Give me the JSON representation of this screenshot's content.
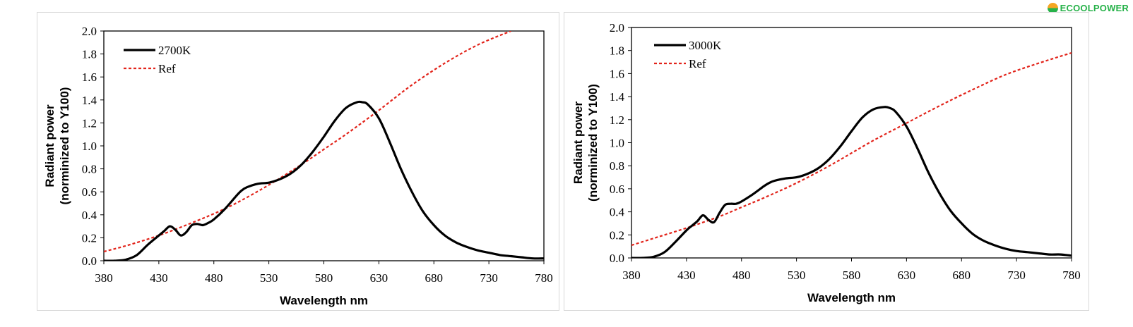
{
  "brand": {
    "logo_text": "ECOOLPOWER",
    "logo_colors": [
      "#f5a623",
      "#27b24a"
    ]
  },
  "chart_data": [
    {
      "type": "line",
      "xlabel": "Wavelength nm",
      "ylabel_line1": "Radiant power",
      "ylabel_line2": "(norminized to Y100)",
      "xlim": [
        380,
        780
      ],
      "ylim": [
        0,
        2.0
      ],
      "x_ticks": [
        380,
        430,
        480,
        530,
        580,
        630,
        680,
        730,
        780
      ],
      "y_ticks": [
        "0.0",
        "0.2",
        "0.4",
        "0.6",
        "0.8",
        "1.0",
        "1.2",
        "1.4",
        "1.6",
        "1.8",
        "2.0"
      ],
      "legend_position": "top-left",
      "series": [
        {
          "name": "2700K",
          "color": "#000000",
          "style": "solid",
          "x": [
            380,
            390,
            400,
            410,
            420,
            430,
            435,
            440,
            445,
            450,
            455,
            460,
            465,
            470,
            475,
            480,
            490,
            500,
            505,
            510,
            520,
            530,
            540,
            550,
            560,
            570,
            580,
            590,
            600,
            610,
            615,
            620,
            630,
            640,
            650,
            660,
            670,
            680,
            690,
            700,
            710,
            720,
            730,
            740,
            750,
            760,
            770,
            780
          ],
          "y": [
            0.0,
            0.0,
            0.01,
            0.05,
            0.14,
            0.22,
            0.26,
            0.3,
            0.27,
            0.22,
            0.25,
            0.31,
            0.32,
            0.31,
            0.33,
            0.36,
            0.45,
            0.56,
            0.61,
            0.64,
            0.67,
            0.68,
            0.71,
            0.76,
            0.84,
            0.95,
            1.08,
            1.22,
            1.33,
            1.38,
            1.38,
            1.36,
            1.24,
            1.03,
            0.8,
            0.6,
            0.43,
            0.31,
            0.22,
            0.16,
            0.12,
            0.09,
            0.07,
            0.05,
            0.04,
            0.03,
            0.02,
            0.02
          ]
        },
        {
          "name": "Ref",
          "color": "#e2231a",
          "style": "dashed",
          "x": [
            380,
            400,
            430,
            460,
            480,
            500,
            530,
            560,
            580,
            600,
            630,
            660,
            690,
            720,
            750
          ],
          "y": [
            0.08,
            0.13,
            0.22,
            0.33,
            0.41,
            0.5,
            0.66,
            0.84,
            0.97,
            1.1,
            1.31,
            1.53,
            1.72,
            1.88,
            2.0
          ]
        }
      ]
    },
    {
      "type": "line",
      "xlabel": "Wavelength nm",
      "ylabel_line1": "Radiant power",
      "ylabel_line2": "(norminized to Y100)",
      "xlim": [
        380,
        780
      ],
      "ylim": [
        0,
        2.0
      ],
      "x_ticks": [
        380,
        430,
        480,
        530,
        580,
        630,
        680,
        730,
        780
      ],
      "y_ticks": [
        "0.0",
        "0.2",
        "0.4",
        "0.6",
        "0.8",
        "1.0",
        "1.2",
        "1.4",
        "1.6",
        "1.8",
        "2.0"
      ],
      "legend_position": "top-left",
      "series": [
        {
          "name": "3000K",
          "color": "#000000",
          "style": "solid",
          "x": [
            380,
            390,
            400,
            410,
            420,
            430,
            435,
            440,
            445,
            450,
            455,
            460,
            465,
            470,
            475,
            480,
            490,
            500,
            505,
            510,
            520,
            530,
            540,
            550,
            560,
            570,
            580,
            590,
            600,
            610,
            615,
            620,
            630,
            640,
            650,
            660,
            670,
            680,
            690,
            700,
            710,
            720,
            730,
            740,
            750,
            760,
            770,
            780
          ],
          "y": [
            0.0,
            0.0,
            0.01,
            0.05,
            0.14,
            0.24,
            0.28,
            0.32,
            0.37,
            0.33,
            0.31,
            0.39,
            0.46,
            0.47,
            0.47,
            0.49,
            0.55,
            0.62,
            0.65,
            0.67,
            0.69,
            0.7,
            0.73,
            0.78,
            0.86,
            0.97,
            1.1,
            1.22,
            1.29,
            1.31,
            1.3,
            1.27,
            1.14,
            0.95,
            0.74,
            0.56,
            0.41,
            0.3,
            0.21,
            0.15,
            0.11,
            0.08,
            0.06,
            0.05,
            0.04,
            0.03,
            0.03,
            0.02
          ]
        },
        {
          "name": "Ref",
          "color": "#e2231a",
          "style": "dashed",
          "x": [
            380,
            400,
            430,
            460,
            480,
            500,
            530,
            560,
            580,
            600,
            630,
            660,
            690,
            720,
            750,
            780
          ],
          "y": [
            0.11,
            0.17,
            0.26,
            0.36,
            0.44,
            0.52,
            0.65,
            0.8,
            0.91,
            1.02,
            1.17,
            1.32,
            1.46,
            1.59,
            1.69,
            1.78
          ]
        }
      ]
    }
  ]
}
